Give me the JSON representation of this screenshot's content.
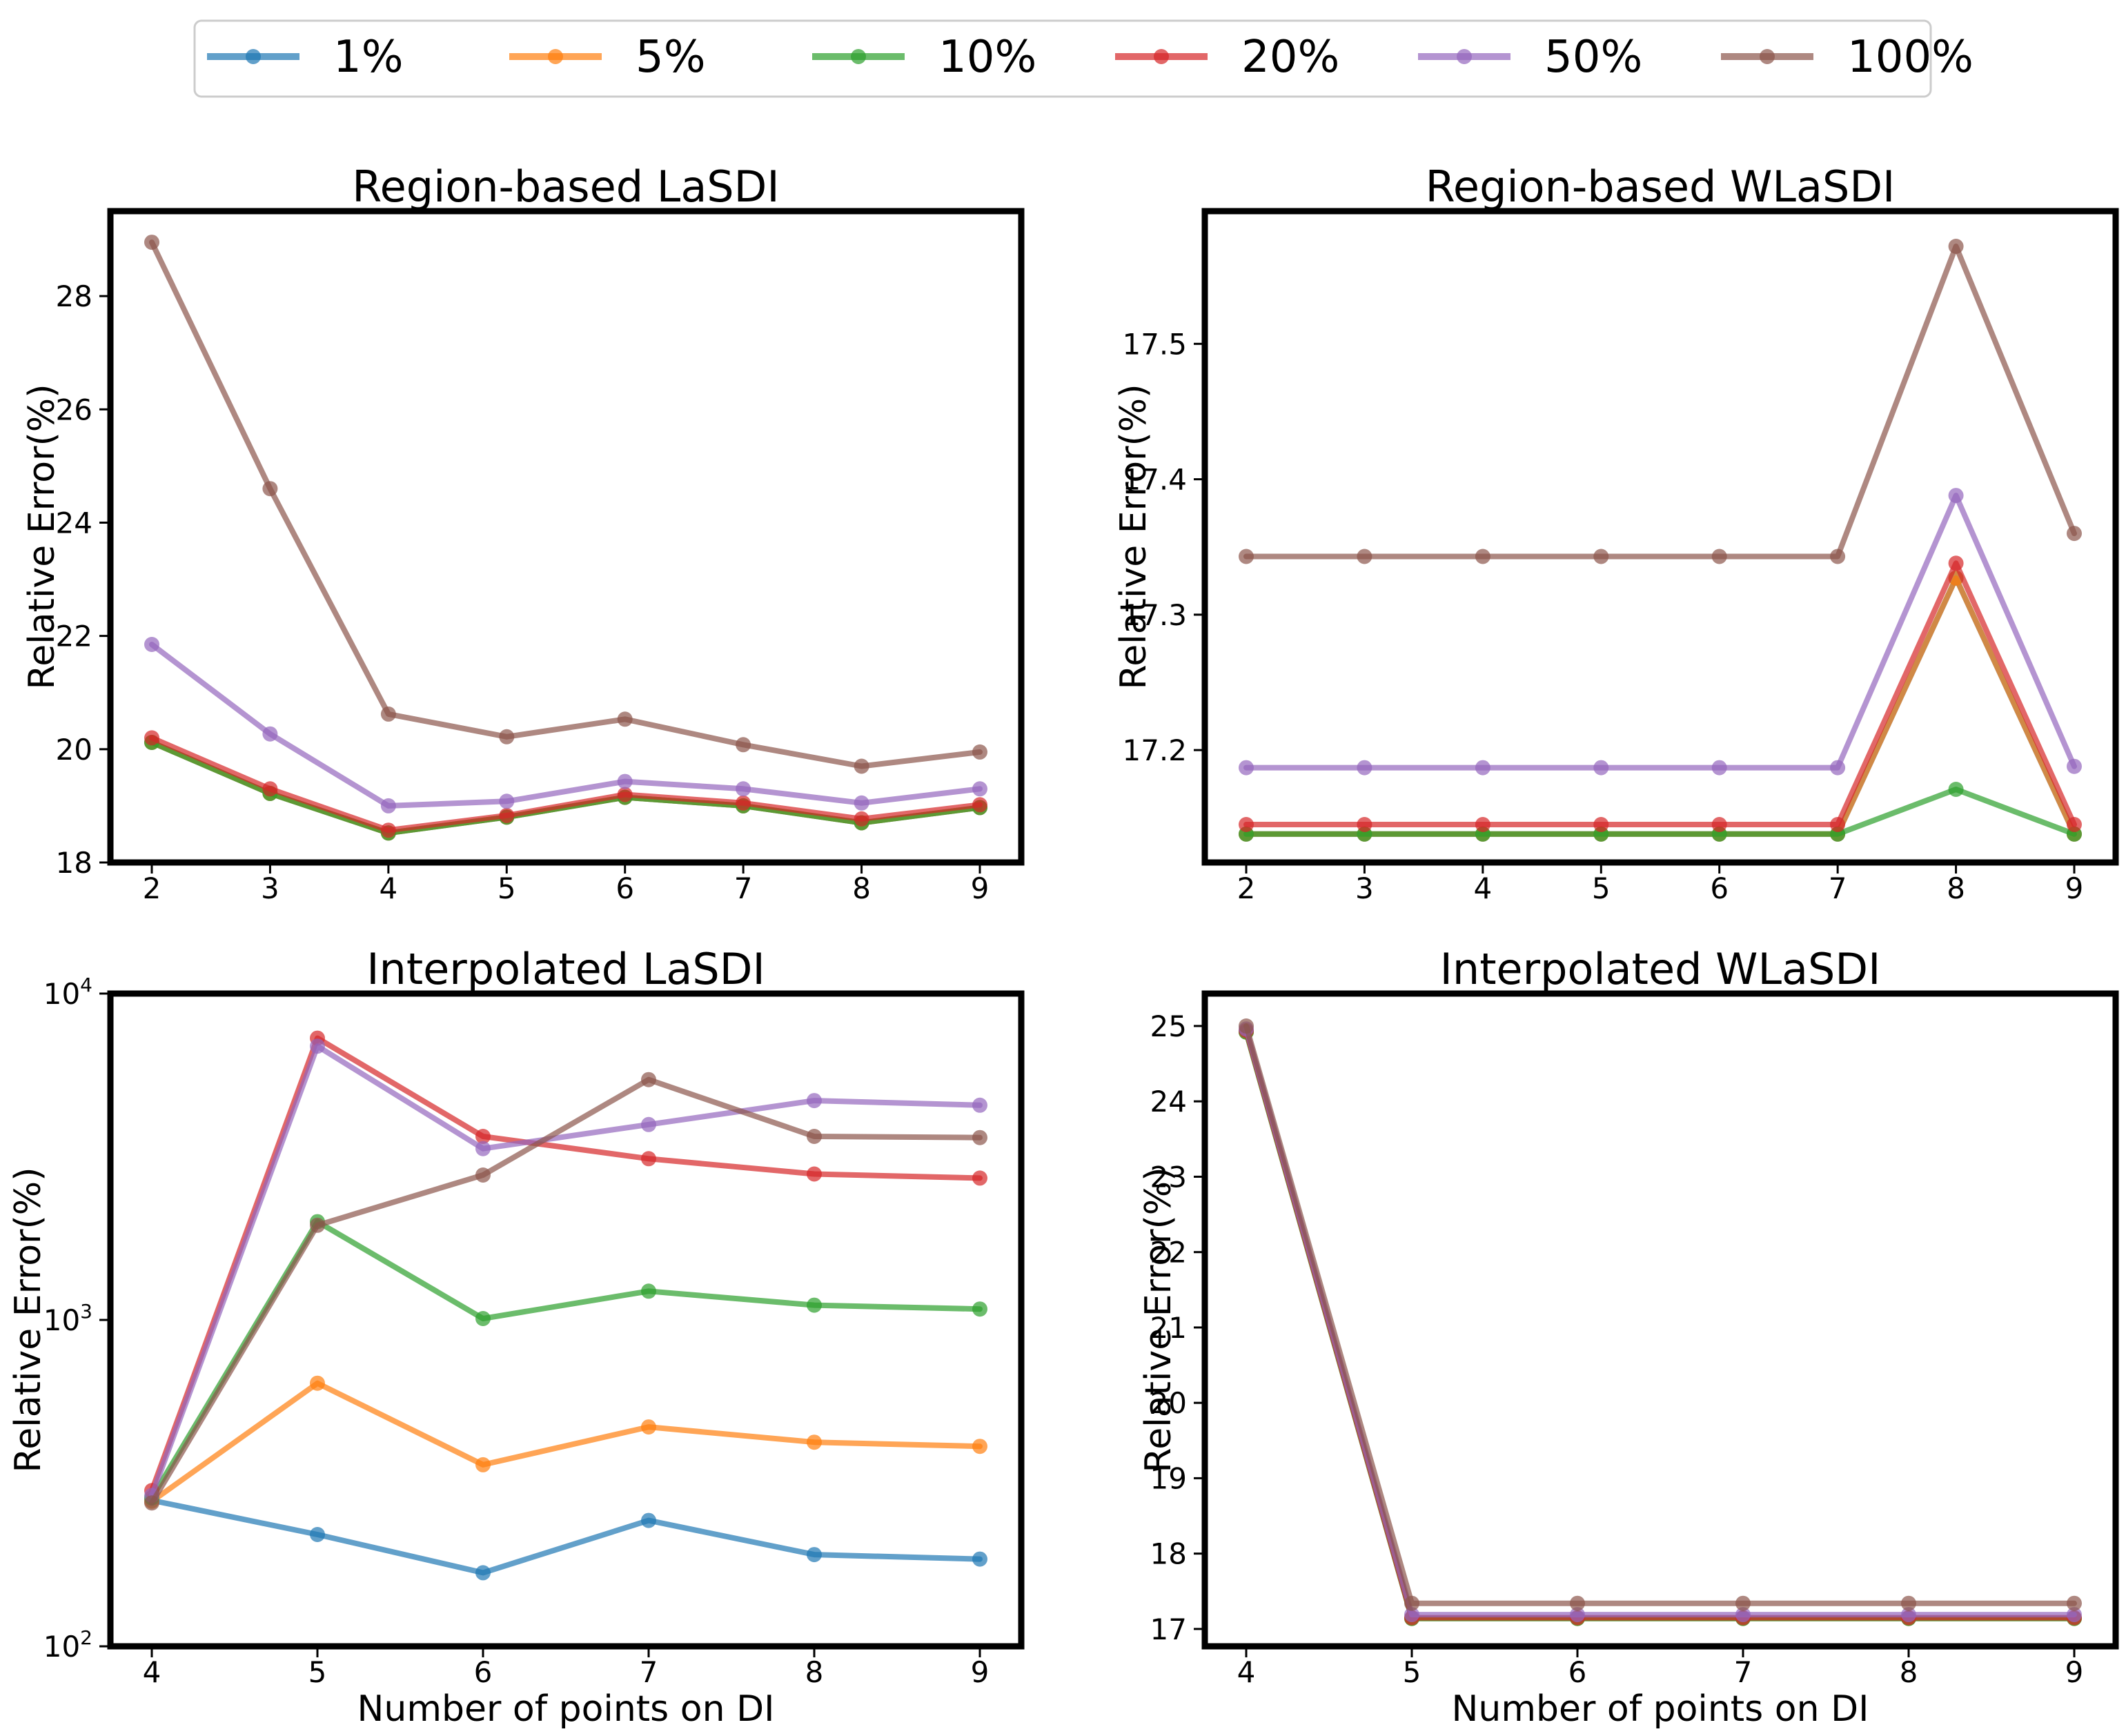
{
  "colors": {
    "1%": "#1f77b4",
    "5%": "#ff7f0e",
    "10%": "#2ca02c",
    "20%": "#d62728",
    "50%": "#9467bd",
    "100%": "#8c564b"
  },
  "legend": [
    "1%",
    "5%",
    "10%",
    "20%",
    "50%",
    "100%"
  ],
  "chart_data": [
    {
      "id": "region-lasdi",
      "type": "line",
      "title": "Region-based LaSDI",
      "xlabel": "",
      "ylabel": "Relative Error(%)",
      "yscale": "linear",
      "x": [
        2,
        3,
        4,
        5,
        6,
        7,
        8,
        9
      ],
      "xlim": [
        1.65,
        9.35
      ],
      "ylim": [
        18,
        29.5
      ],
      "xticks": [
        "2",
        "3",
        "4",
        "5",
        "6",
        "7",
        "8",
        "9"
      ],
      "yticks": [
        18,
        20,
        22,
        24,
        26,
        28
      ],
      "yticklabels": [
        "18",
        "20",
        "22",
        "24",
        "26",
        "28"
      ],
      "series": [
        {
          "name": "1%",
          "values": [
            20.12,
            19.22,
            18.52,
            18.8,
            19.15,
            19.0,
            18.7,
            18.97
          ]
        },
        {
          "name": "5%",
          "values": [
            20.12,
            19.22,
            18.52,
            18.8,
            19.15,
            19.0,
            18.7,
            18.97
          ]
        },
        {
          "name": "10%",
          "values": [
            20.12,
            19.22,
            18.52,
            18.8,
            19.15,
            19.0,
            18.7,
            18.97
          ]
        },
        {
          "name": "20%",
          "values": [
            20.2,
            19.3,
            18.57,
            18.83,
            19.2,
            19.05,
            18.77,
            19.02
          ]
        },
        {
          "name": "50%",
          "values": [
            21.85,
            20.27,
            19.0,
            19.08,
            19.43,
            19.3,
            19.05,
            19.3
          ]
        },
        {
          "name": "100%",
          "values": [
            28.95,
            24.6,
            20.62,
            20.22,
            20.53,
            20.08,
            19.7,
            19.95
          ]
        }
      ]
    },
    {
      "id": "region-wlasdi",
      "type": "line",
      "title": "Region-based WLaSDI",
      "xlabel": "",
      "ylabel": "Relative Error(%)",
      "yscale": "linear",
      "x": [
        2,
        3,
        4,
        5,
        6,
        7,
        8,
        9
      ],
      "xlim": [
        1.65,
        9.35
      ],
      "ylim": [
        17.117,
        17.598
      ],
      "xticks": [
        "2",
        "3",
        "4",
        "5",
        "6",
        "7",
        "8",
        "9"
      ],
      "yticks": [
        17.2,
        17.3,
        17.4,
        17.5
      ],
      "yticklabels": [
        "17.2",
        "17.3",
        "17.4",
        "17.5"
      ],
      "series": [
        {
          "name": "1%",
          "values": [
            17.138,
            17.138,
            17.138,
            17.138,
            17.138,
            17.138,
            17.327,
            17.138
          ]
        },
        {
          "name": "5%",
          "values": [
            17.138,
            17.138,
            17.138,
            17.138,
            17.138,
            17.138,
            17.327,
            17.138
          ]
        },
        {
          "name": "10%",
          "values": [
            17.138,
            17.138,
            17.138,
            17.138,
            17.138,
            17.138,
            17.171,
            17.138
          ]
        },
        {
          "name": "20%",
          "values": [
            17.145,
            17.145,
            17.145,
            17.145,
            17.145,
            17.145,
            17.338,
            17.145
          ]
        },
        {
          "name": "50%",
          "values": [
            17.187,
            17.187,
            17.187,
            17.187,
            17.187,
            17.187,
            17.388,
            17.188
          ]
        },
        {
          "name": "100%",
          "values": [
            17.343,
            17.343,
            17.343,
            17.343,
            17.343,
            17.343,
            17.572,
            17.36
          ]
        }
      ]
    },
    {
      "id": "interp-lasdi",
      "type": "line",
      "title": "Interpolated LaSDI",
      "xlabel": "Number of points on DI",
      "ylabel": "Relative Error(%)",
      "yscale": "log",
      "x": [
        4,
        5,
        6,
        7,
        8,
        9
      ],
      "xlim": [
        3.75,
        9.25
      ],
      "ylim": [
        100,
        10000
      ],
      "xticks": [
        "4",
        "5",
        "6",
        "7",
        "8",
        "9"
      ],
      "yticks": [
        100,
        1000,
        10000
      ],
      "yticklabels": [
        {
          "base": "10",
          "exp": "2"
        },
        {
          "base": "10",
          "exp": "3"
        },
        {
          "base": "10",
          "exp": "4"
        }
      ],
      "series": [
        {
          "name": "1%",
          "values": [
            280,
            220,
            168,
            243,
            191,
            185
          ]
        },
        {
          "name": "5%",
          "values": [
            278,
            640,
            360,
            470,
            422,
            410
          ]
        },
        {
          "name": "10%",
          "values": [
            285,
            2000,
            1010,
            1225,
            1110,
            1080
          ]
        },
        {
          "name": "20%",
          "values": [
            300,
            7300,
            3650,
            3120,
            2800,
            2720
          ]
        },
        {
          "name": "50%",
          "values": [
            290,
            6900,
            3350,
            3970,
            4700,
            4550
          ]
        },
        {
          "name": "100%",
          "values": [
            275,
            1950,
            2780,
            5450,
            3650,
            3620
          ]
        }
      ]
    },
    {
      "id": "interp-wlasdi",
      "type": "line",
      "title": "Interpolated WLaSDI",
      "xlabel": "Number of points on DI",
      "ylabel": "Relative Error(%)",
      "yscale": "linear",
      "x": [
        4,
        5,
        6,
        7,
        8,
        9
      ],
      "xlim": [
        3.75,
        9.25
      ],
      "ylim": [
        16.77,
        25.43
      ],
      "xticks": [
        "4",
        "5",
        "6",
        "7",
        "8",
        "9"
      ],
      "yticks": [
        17,
        18,
        19,
        20,
        21,
        22,
        23,
        24,
        25
      ],
      "yticklabels": [
        "17",
        "18",
        "19",
        "20",
        "21",
        "22",
        "23",
        "24",
        "25"
      ],
      "series": [
        {
          "name": "1%",
          "values": [
            24.92,
            17.14,
            17.14,
            17.14,
            17.14,
            17.14
          ]
        },
        {
          "name": "5%",
          "values": [
            24.92,
            17.14,
            17.14,
            17.14,
            17.14,
            17.14
          ]
        },
        {
          "name": "10%",
          "values": [
            24.92,
            17.14,
            17.14,
            17.14,
            17.14,
            17.14
          ]
        },
        {
          "name": "20%",
          "values": [
            24.94,
            17.15,
            17.15,
            17.15,
            17.15,
            17.15
          ]
        },
        {
          "name": "50%",
          "values": [
            24.96,
            17.19,
            17.19,
            17.19,
            17.19,
            17.19
          ]
        },
        {
          "name": "100%",
          "values": [
            25.0,
            17.34,
            17.34,
            17.34,
            17.34,
            17.34
          ]
        }
      ]
    }
  ]
}
